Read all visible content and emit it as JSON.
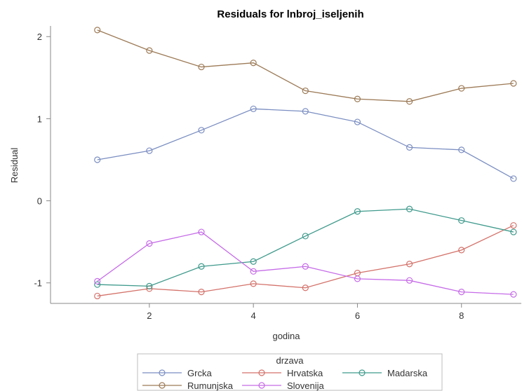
{
  "chart_data": {
    "type": "line",
    "title": "Residuals for lnbroj_iseljenih",
    "xlabel": "godina",
    "ylabel": "Residual",
    "x": [
      1,
      2,
      3,
      4,
      5,
      6,
      7,
      8,
      9
    ],
    "xlim": [
      0.1,
      9.15
    ],
    "ylim": [
      -1.25,
      2.13
    ],
    "xticks": [
      2,
      4,
      6,
      8
    ],
    "yticks": [
      -1,
      0,
      1,
      2
    ],
    "marker": "circle-open",
    "legend": {
      "title": "drzava",
      "placement": "bottom"
    },
    "series": [
      {
        "name": "Grcka",
        "color": "#7b8ec2",
        "values": [
          0.5,
          0.61,
          0.86,
          1.12,
          1.09,
          0.96,
          0.65,
          0.62,
          0.27
        ]
      },
      {
        "name": "Hrvatska",
        "color": "#d4726a",
        "values": [
          -1.16,
          -1.07,
          -1.11,
          -1.01,
          -1.06,
          -0.88,
          -0.77,
          -0.6,
          -0.3
        ]
      },
      {
        "name": "Madarska",
        "color": "#3f9a8c",
        "values": [
          -1.02,
          -1.04,
          -0.8,
          -0.74,
          -0.43,
          -0.13,
          -0.1,
          -0.24,
          -0.38
        ]
      },
      {
        "name": "Rumunjska",
        "color": "#9c7a56",
        "values": [
          2.08,
          1.83,
          1.63,
          1.68,
          1.34,
          1.24,
          1.21,
          1.37,
          1.43
        ]
      },
      {
        "name": "Slovenija",
        "color": "#c66ce8",
        "values": [
          -0.98,
          -0.52,
          -0.38,
          -0.86,
          -0.8,
          -0.95,
          -0.97,
          -1.11,
          -1.14
        ]
      }
    ]
  }
}
